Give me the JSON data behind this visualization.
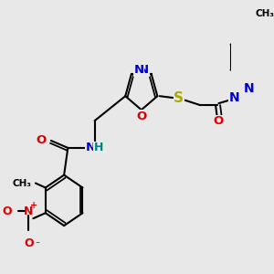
{
  "bg_color": "#e8e8e8",
  "bond_color": "#000000",
  "bond_width": 1.5,
  "figsize": [
    3.0,
    3.0
  ],
  "dpi": 100,
  "atom_colors": {
    "N": "#0000cc",
    "O": "#dd0000",
    "S": "#aaaa00",
    "C": "#000000",
    "H": "#008080"
  }
}
